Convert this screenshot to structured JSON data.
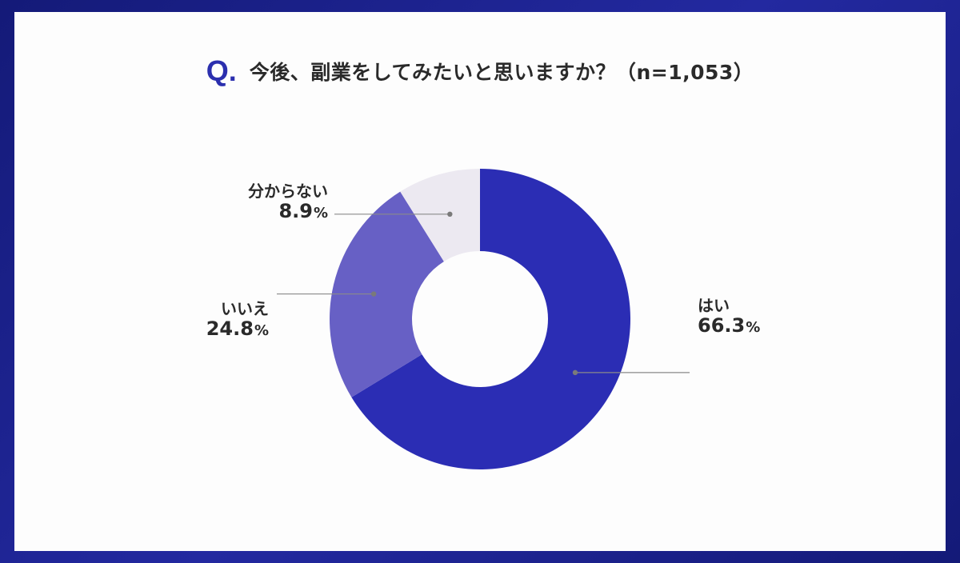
{
  "question": {
    "prefix": "Q.",
    "text": "今後、副業をしてみたいと思いますか？（n=1,053）"
  },
  "colors": {
    "background_frame": "#1a1f8a",
    "card": "#fdfdfd",
    "accent": "#2b2fae",
    "slices": [
      "#2b2db4",
      "#6760c5",
      "#ece9f1"
    ]
  },
  "chart_data": {
    "type": "pie",
    "variant": "donut",
    "title": "今後、副業をしてみたいと思いますか？（n=1,053）",
    "n": 1053,
    "categories": [
      "はい",
      "いいえ",
      "分からない"
    ],
    "values": [
      66.3,
      24.8,
      8.9
    ],
    "value_labels": [
      "66.3",
      "24.8",
      "8.9"
    ],
    "unit": "%",
    "start": "12 o'clock",
    "direction": "clockwise"
  }
}
